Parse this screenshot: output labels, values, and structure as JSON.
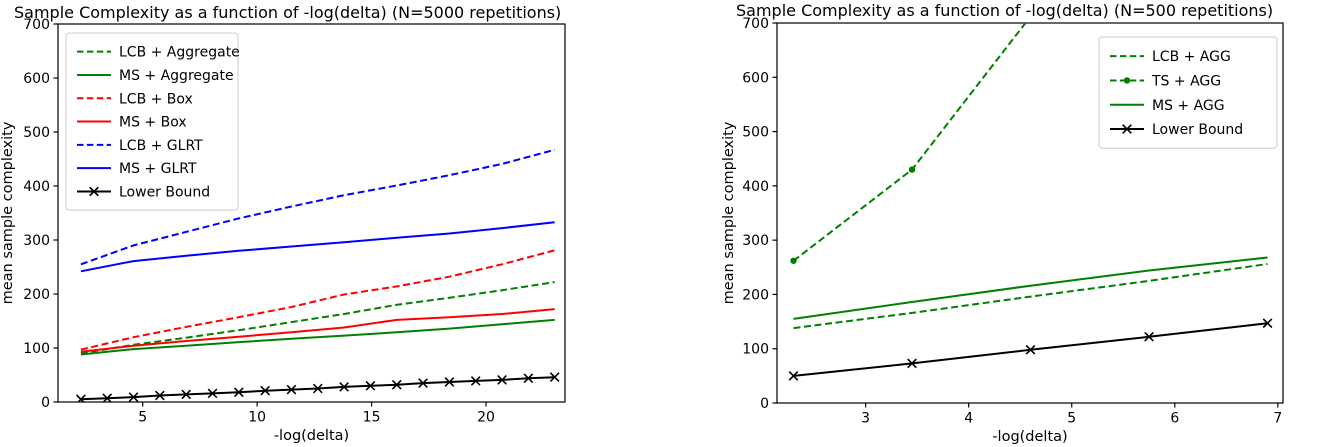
{
  "chart_data": [
    {
      "type": "line",
      "title": "Sample Complexity as a function of -log(delta) (N=5000 repetitions)",
      "xlabel": "-log(delta)",
      "ylabel": "mean sample complexity",
      "xlim": [
        1.3,
        23.45
      ],
      "ylim": [
        0,
        700
      ],
      "xticks": [
        5,
        10,
        15,
        20
      ],
      "yticks": [
        0,
        100,
        200,
        300,
        400,
        500,
        600,
        700
      ],
      "grid": false,
      "legend_position": "upper left",
      "series": [
        {
          "name": "LCB + Aggregate",
          "color": "#008000",
          "style": "dashed",
          "marker": null,
          "x": [
            2.3,
            4.6,
            6.9,
            9.2,
            11.5,
            13.8,
            16.1,
            18.4,
            20.7,
            23.0
          ],
          "y": [
            90,
            106,
            119,
            133,
            148,
            163,
            180,
            193,
            207,
            222
          ]
        },
        {
          "name": "MS + Aggregate",
          "color": "#008000",
          "style": "solid",
          "marker": null,
          "x": [
            2.3,
            4.6,
            6.9,
            9.2,
            11.5,
            13.8,
            16.1,
            18.4,
            20.7,
            23.0
          ],
          "y": [
            88,
            98,
            104,
            111,
            117,
            123,
            129,
            136,
            144,
            152
          ]
        },
        {
          "name": "LCB + Box",
          "color": "#ff0000",
          "style": "dashed",
          "marker": null,
          "x": [
            2.3,
            4.6,
            6.9,
            9.2,
            11.5,
            13.8,
            16.1,
            18.4,
            20.7,
            23.0
          ],
          "y": [
            97,
            120,
            139,
            157,
            176,
            199,
            214,
            232,
            255,
            281
          ]
        },
        {
          "name": "MS + Box",
          "color": "#ff0000",
          "style": "solid",
          "marker": null,
          "x": [
            2.3,
            4.6,
            6.9,
            9.2,
            11.5,
            13.8,
            16.1,
            18.4,
            20.7,
            23.0
          ],
          "y": [
            93,
            104,
            113,
            121,
            129,
            138,
            152,
            157,
            163,
            172
          ]
        },
        {
          "name": "LCB + GLRT",
          "color": "#0000ff",
          "style": "dashed",
          "marker": null,
          "x": [
            2.3,
            4.6,
            6.9,
            9.2,
            11.5,
            13.8,
            16.1,
            18.4,
            20.7,
            23.0
          ],
          "y": [
            255,
            290,
            315,
            340,
            362,
            383,
            401,
            420,
            441,
            467
          ]
        },
        {
          "name": "MS + GLRT",
          "color": "#0000ff",
          "style": "solid",
          "marker": null,
          "x": [
            2.3,
            4.6,
            6.9,
            9.2,
            11.5,
            13.8,
            16.1,
            18.4,
            20.7,
            23.0
          ],
          "y": [
            242,
            261,
            271,
            280,
            288,
            296,
            304,
            312,
            322,
            333
          ]
        },
        {
          "name": "Lower Bound",
          "color": "#000000",
          "style": "solid",
          "marker": "x",
          "x": [
            2.3,
            3.45,
            4.6,
            5.75,
            6.9,
            8.05,
            9.2,
            10.35,
            11.5,
            12.65,
            13.8,
            14.95,
            16.1,
            17.25,
            18.4,
            19.55,
            20.7,
            21.85,
            23.0
          ],
          "y": [
            5,
            7,
            9,
            12,
            14,
            16,
            18,
            21,
            23,
            25,
            28,
            30,
            32,
            35,
            37,
            39,
            41,
            44,
            46
          ]
        }
      ]
    },
    {
      "type": "line",
      "title": "Sample Complexity as a function of -log(delta) (N=500 repetitions)",
      "xlabel": "-log(delta)",
      "ylabel": "mean sample complexity",
      "xlim": [
        2.14,
        7.05
      ],
      "ylim": [
        0,
        700
      ],
      "xticks": [
        3,
        4,
        5,
        6,
        7
      ],
      "yticks": [
        0,
        100,
        200,
        300,
        400,
        500,
        600,
        700
      ],
      "grid": false,
      "legend_position": "upper right",
      "series": [
        {
          "name": "LCB + AGG",
          "color": "#008000",
          "style": "dashed",
          "marker": null,
          "x": [
            2.3,
            3.45,
            4.6,
            5.75,
            6.9
          ],
          "y": [
            138,
            166,
            196,
            225,
            256
          ]
        },
        {
          "name": "TS + AGG",
          "color": "#008000",
          "style": "dashed",
          "marker": "dot",
          "x": [
            2.3,
            3.45,
            4.6
          ],
          "y": [
            262,
            430,
            712
          ]
        },
        {
          "name": "MS + AGG",
          "color": "#008000",
          "style": "solid",
          "marker": null,
          "x": [
            2.3,
            3.45,
            4.6,
            5.75,
            6.9
          ],
          "y": [
            155,
            186,
            216,
            244,
            268
          ]
        },
        {
          "name": "Lower Bound",
          "color": "#000000",
          "style": "solid",
          "marker": "x",
          "x": [
            2.3,
            3.45,
            4.6,
            5.75,
            6.9
          ],
          "y": [
            50,
            73,
            98,
            122,
            147
          ]
        }
      ]
    }
  ]
}
